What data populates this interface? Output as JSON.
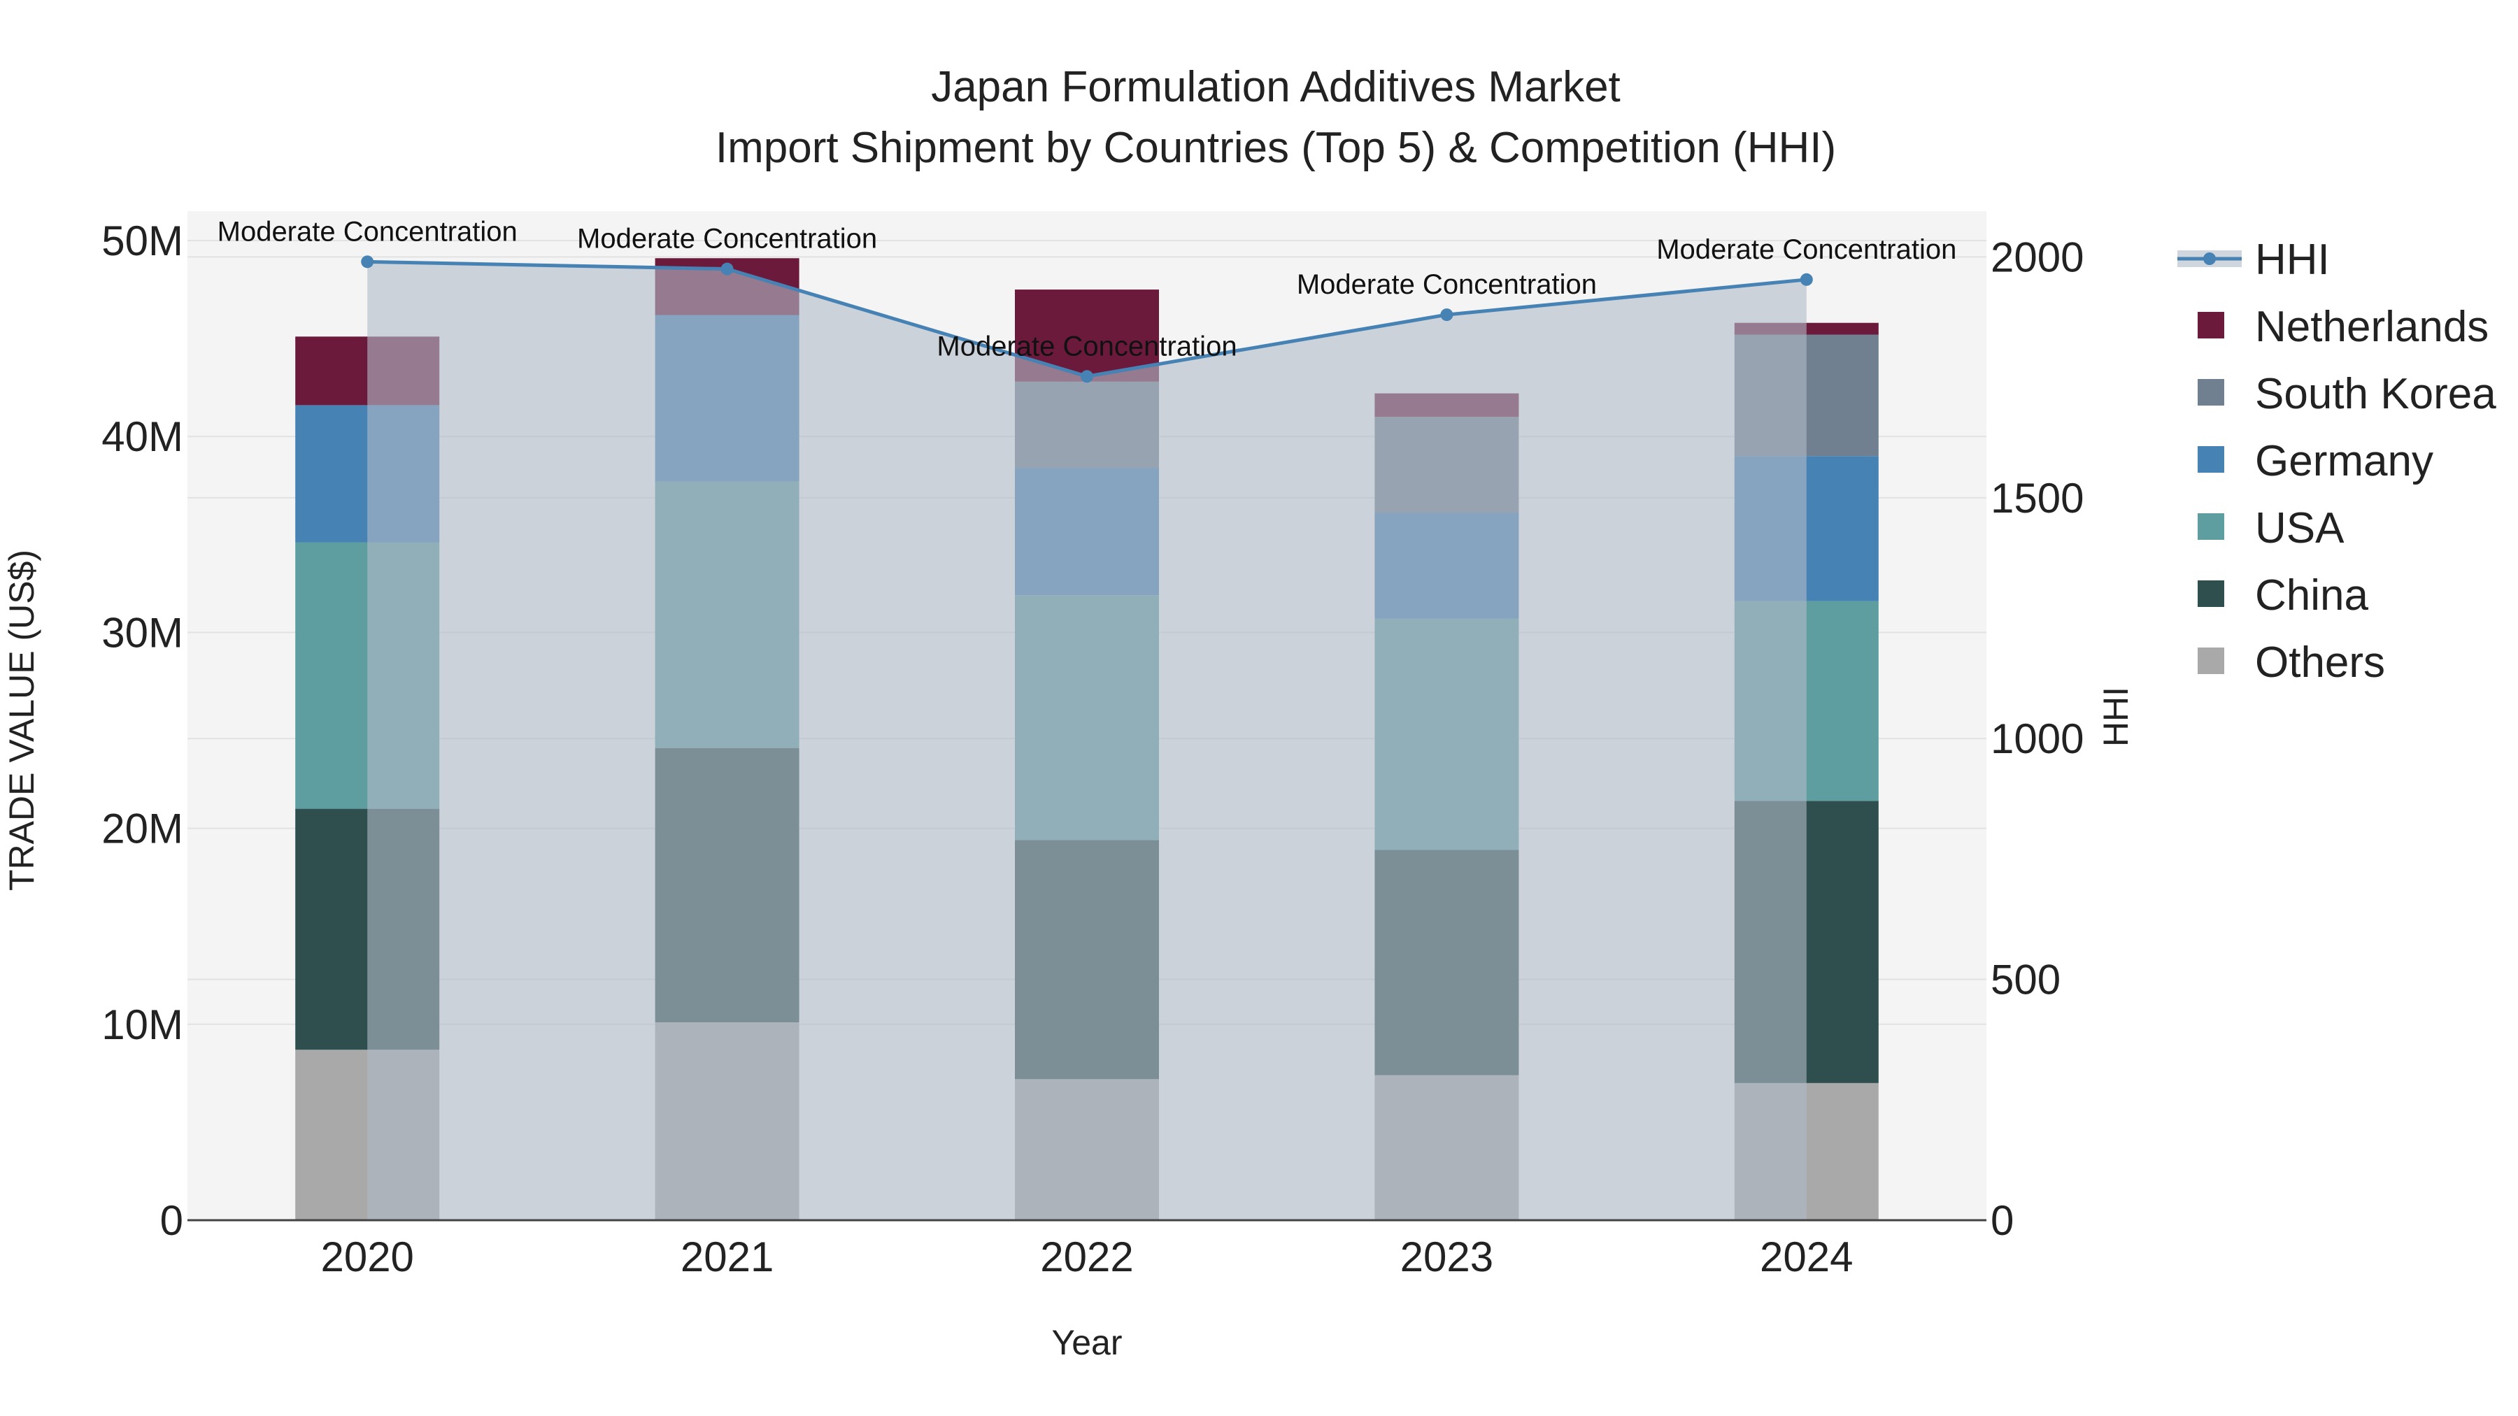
{
  "chart_data": {
    "type": "bar",
    "title_line1": "Japan Formulation Additives Market",
    "title_line2": "Import Shipment by Countries (Top 5) & Competition (HHI)",
    "xlabel": "Year",
    "ylabel": "TRADE VALUE (US$)",
    "y2label": "HHI",
    "categories": [
      "2020",
      "2021",
      "2022",
      "2023",
      "2024"
    ],
    "ylim": [
      0,
      51500000
    ],
    "y2lim": [
      0,
      2095
    ],
    "y_ticks": [
      {
        "value": 0,
        "label": "0"
      },
      {
        "value": 10000000,
        "label": "10M"
      },
      {
        "value": 20000000,
        "label": "20M"
      },
      {
        "value": 30000000,
        "label": "30M"
      },
      {
        "value": 40000000,
        "label": "40M"
      },
      {
        "value": 50000000,
        "label": "50M"
      }
    ],
    "y2_ticks": [
      {
        "value": 0,
        "label": "0"
      },
      {
        "value": 500,
        "label": "500"
      },
      {
        "value": 1000,
        "label": "1000"
      },
      {
        "value": 1500,
        "label": "1500"
      },
      {
        "value": 2000,
        "label": "2000"
      }
    ],
    "series": [
      {
        "name": "Others",
        "color": "#a9a9a9",
        "values": [
          8700000,
          10100000,
          7200000,
          7400000,
          7000000
        ]
      },
      {
        "name": "China",
        "color": "#2f4f4f",
        "values": [
          12300000,
          14000000,
          12200000,
          11500000,
          14400000
        ]
      },
      {
        "name": "USA",
        "color": "#5f9ea0",
        "values": [
          13600000,
          13600000,
          12500000,
          11800000,
          10200000
        ]
      },
      {
        "name": "Germany",
        "color": "#4682b4",
        "values": [
          7000000,
          8500000,
          6500000,
          5400000,
          7400000
        ]
      },
      {
        "name": "South Korea",
        "color": "#708090",
        "values": [
          0,
          0,
          4400000,
          4900000,
          6200000
        ]
      },
      {
        "name": "Netherlands",
        "color": "#6b1a3c",
        "values": [
          3500000,
          2900000,
          4700000,
          1200000,
          600000
        ]
      }
    ],
    "hhi": {
      "name": "HHI",
      "color": "#4682b4",
      "values": [
        1990,
        1975,
        1752,
        1880,
        1953
      ],
      "annotations": [
        "Moderate Concentration",
        "Moderate Concentration",
        "Moderate Concentration",
        "Moderate Concentration",
        "Moderate Concentration"
      ]
    },
    "legend_order": [
      "HHI",
      "Netherlands",
      "South Korea",
      "Germany",
      "USA",
      "China",
      "Others"
    ],
    "grid": true,
    "legend_position": "right"
  }
}
